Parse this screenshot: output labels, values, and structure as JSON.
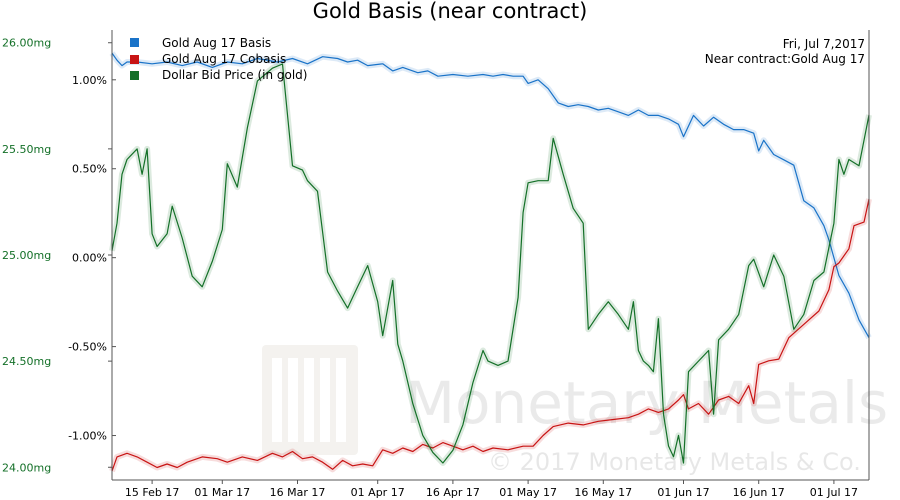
{
  "chart_data": {
    "type": "line",
    "title": "Gold Basis (near contract)",
    "info": [
      "Fri, Jul 7,2017",
      "Near contract:Gold Aug 17"
    ],
    "watermark": [
      "Monetary Metals",
      "© 2017 Monetary Metals & Co."
    ],
    "x_ticks": [
      "15 Feb 17",
      "01 Mar 17",
      "16 Mar 17",
      "01 Apr 17",
      "16 Apr 17",
      "01 May 17",
      "16 May 17",
      "01 Jun 17",
      "16 Jun 17",
      "01 Jul 17"
    ],
    "x_tick_days": [
      15,
      29,
      44,
      60,
      75,
      90,
      105,
      121,
      136,
      151
    ],
    "xlim": [
      7,
      158
    ],
    "left_axis": {
      "ticks": [
        "26.00mg",
        "25.50mg",
        "25.00mg",
        "24.50mg",
        "24.00mg"
      ],
      "values": [
        26.0,
        25.5,
        25.0,
        24.5,
        24.0
      ],
      "range": [
        23.94,
        26.06
      ]
    },
    "right_axis": {
      "ticks": [
        "1.00%",
        "0.50%",
        "0.00%",
        "-0.50%",
        "-1.00%"
      ],
      "values": [
        1.0,
        0.5,
        0.0,
        -0.5,
        -1.0
      ],
      "range": [
        -1.25,
        1.28
      ]
    },
    "colors": {
      "basis": "#1a73c8",
      "cobasis": "#c81414",
      "dollar": "#147028"
    },
    "series": [
      {
        "name": "Gold Aug 17 Basis",
        "axis": "right",
        "color": "#1a73c8",
        "points": [
          [
            7,
            1.15
          ],
          [
            8,
            1.11
          ],
          [
            9,
            1.08
          ],
          [
            10,
            1.1
          ],
          [
            12,
            1.1
          ],
          [
            15,
            1.09
          ],
          [
            18,
            1.1
          ],
          [
            21,
            1.08
          ],
          [
            24,
            1.1
          ],
          [
            27,
            1.07
          ],
          [
            30,
            1.1
          ],
          [
            33,
            1.09
          ],
          [
            36,
            1.12
          ],
          [
            40,
            1.1
          ],
          [
            43,
            1.12
          ],
          [
            46,
            1.09
          ],
          [
            49,
            1.13
          ],
          [
            52,
            1.12
          ],
          [
            54,
            1.1
          ],
          [
            56,
            1.11
          ],
          [
            58,
            1.08
          ],
          [
            61,
            1.09
          ],
          [
            63,
            1.05
          ],
          [
            65,
            1.07
          ],
          [
            68,
            1.04
          ],
          [
            70,
            1.05
          ],
          [
            72,
            1.02
          ],
          [
            75,
            1.03
          ],
          [
            78,
            1.02
          ],
          [
            81,
            1.03
          ],
          [
            83,
            1.02
          ],
          [
            85,
            1.03
          ],
          [
            87,
            1.02
          ],
          [
            89,
            1.02
          ],
          [
            90,
            0.98
          ],
          [
            92,
            1.0
          ],
          [
            94,
            0.95
          ],
          [
            96,
            0.87
          ],
          [
            98,
            0.85
          ],
          [
            100,
            0.86
          ],
          [
            102,
            0.85
          ],
          [
            104,
            0.83
          ],
          [
            106,
            0.84
          ],
          [
            108,
            0.82
          ],
          [
            110,
            0.8
          ],
          [
            112,
            0.83
          ],
          [
            114,
            0.8
          ],
          [
            116,
            0.8
          ],
          [
            118,
            0.78
          ],
          [
            120,
            0.75
          ],
          [
            121,
            0.68
          ],
          [
            123,
            0.8
          ],
          [
            125,
            0.74
          ],
          [
            127,
            0.79
          ],
          [
            129,
            0.75
          ],
          [
            131,
            0.72
          ],
          [
            133,
            0.72
          ],
          [
            135,
            0.7
          ],
          [
            136,
            0.6
          ],
          [
            137,
            0.66
          ],
          [
            139,
            0.58
          ],
          [
            141,
            0.55
          ],
          [
            143,
            0.52
          ],
          [
            145,
            0.32
          ],
          [
            147,
            0.28
          ],
          [
            149,
            0.18
          ],
          [
            150,
            0.1
          ],
          [
            151,
            0.0
          ],
          [
            152,
            -0.1
          ],
          [
            154,
            -0.2
          ],
          [
            156,
            -0.35
          ],
          [
            158,
            -0.45
          ]
        ]
      },
      {
        "name": "Gold Aug 17 Cobasis",
        "axis": "right",
        "color": "#c81414",
        "points": [
          [
            7,
            -1.2
          ],
          [
            8,
            -1.12
          ],
          [
            10,
            -1.1
          ],
          [
            12,
            -1.12
          ],
          [
            14,
            -1.15
          ],
          [
            16,
            -1.18
          ],
          [
            18,
            -1.16
          ],
          [
            20,
            -1.18
          ],
          [
            22,
            -1.15
          ],
          [
            25,
            -1.12
          ],
          [
            28,
            -1.13
          ],
          [
            30,
            -1.15
          ],
          [
            33,
            -1.12
          ],
          [
            36,
            -1.14
          ],
          [
            39,
            -1.1
          ],
          [
            41,
            -1.12
          ],
          [
            43,
            -1.09
          ],
          [
            45,
            -1.13
          ],
          [
            47,
            -1.12
          ],
          [
            49,
            -1.15
          ],
          [
            51,
            -1.19
          ],
          [
            53,
            -1.14
          ],
          [
            55,
            -1.17
          ],
          [
            57,
            -1.16
          ],
          [
            59,
            -1.17
          ],
          [
            61,
            -1.08
          ],
          [
            63,
            -1.1
          ],
          [
            65,
            -1.07
          ],
          [
            67,
            -1.09
          ],
          [
            69,
            -1.05
          ],
          [
            71,
            -1.07
          ],
          [
            73,
            -1.04
          ],
          [
            75,
            -1.06
          ],
          [
            77,
            -1.08
          ],
          [
            79,
            -1.06
          ],
          [
            81,
            -1.09
          ],
          [
            83,
            -1.07
          ],
          [
            86,
            -1.08
          ],
          [
            89,
            -1.06
          ],
          [
            91,
            -1.06
          ],
          [
            93,
            -1.0
          ],
          [
            95,
            -0.95
          ],
          [
            98,
            -0.93
          ],
          [
            101,
            -0.94
          ],
          [
            104,
            -0.92
          ],
          [
            107,
            -0.91
          ],
          [
            110,
            -0.9
          ],
          [
            112,
            -0.88
          ],
          [
            114,
            -0.85
          ],
          [
            116,
            -0.87
          ],
          [
            118,
            -0.85
          ],
          [
            120,
            -0.8
          ],
          [
            121,
            -0.77
          ],
          [
            122,
            -0.85
          ],
          [
            124,
            -0.82
          ],
          [
            126,
            -0.88
          ],
          [
            128,
            -0.8
          ],
          [
            130,
            -0.78
          ],
          [
            132,
            -0.82
          ],
          [
            134,
            -0.72
          ],
          [
            135,
            -0.82
          ],
          [
            136,
            -0.6
          ],
          [
            138,
            -0.58
          ],
          [
            140,
            -0.57
          ],
          [
            142,
            -0.45
          ],
          [
            144,
            -0.4
          ],
          [
            146,
            -0.35
          ],
          [
            148,
            -0.3
          ],
          [
            150,
            -0.18
          ],
          [
            151,
            -0.05
          ],
          [
            152,
            -0.03
          ],
          [
            154,
            0.05
          ],
          [
            155,
            0.18
          ],
          [
            157,
            0.2
          ],
          [
            158,
            0.33
          ]
        ]
      },
      {
        "name": "Dollar Bid Price (in gold)",
        "axis": "left",
        "color": "#147028",
        "points": [
          [
            7,
            25.02
          ],
          [
            8,
            25.15
          ],
          [
            9,
            25.38
          ],
          [
            10,
            25.45
          ],
          [
            12,
            25.5
          ],
          [
            13,
            25.38
          ],
          [
            14,
            25.5
          ],
          [
            15,
            25.1
          ],
          [
            16,
            25.04
          ],
          [
            18,
            25.1
          ],
          [
            19,
            25.23
          ],
          [
            21,
            25.08
          ],
          [
            23,
            24.9
          ],
          [
            25,
            24.85
          ],
          [
            27,
            24.97
          ],
          [
            29,
            25.12
          ],
          [
            30,
            25.43
          ],
          [
            32,
            25.32
          ],
          [
            34,
            25.6
          ],
          [
            36,
            25.82
          ],
          [
            38,
            25.86
          ],
          [
            39,
            25.88
          ],
          [
            41,
            25.9
          ],
          [
            43,
            25.42
          ],
          [
            45,
            25.4
          ],
          [
            46,
            25.35
          ],
          [
            48,
            25.3
          ],
          [
            50,
            24.92
          ],
          [
            52,
            24.83
          ],
          [
            54,
            24.75
          ],
          [
            56,
            24.85
          ],
          [
            58,
            24.95
          ],
          [
            60,
            24.78
          ],
          [
            61,
            24.62
          ],
          [
            63,
            24.88
          ],
          [
            64,
            24.58
          ],
          [
            65,
            24.5
          ],
          [
            67,
            24.3
          ],
          [
            69,
            24.15
          ],
          [
            71,
            24.07
          ],
          [
            73,
            24.02
          ],
          [
            75,
            24.08
          ],
          [
            77,
            24.2
          ],
          [
            79,
            24.4
          ],
          [
            81,
            24.55
          ],
          [
            82,
            24.5
          ],
          [
            84,
            24.48
          ],
          [
            86,
            24.5
          ],
          [
            88,
            24.8
          ],
          [
            89,
            25.2
          ],
          [
            90,
            25.34
          ],
          [
            92,
            25.35
          ],
          [
            94,
            25.35
          ],
          [
            95,
            25.55
          ],
          [
            97,
            25.38
          ],
          [
            99,
            25.22
          ],
          [
            101,
            25.15
          ],
          [
            102,
            24.65
          ],
          [
            104,
            24.72
          ],
          [
            106,
            24.78
          ],
          [
            108,
            24.72
          ],
          [
            110,
            24.65
          ],
          [
            111,
            24.78
          ],
          [
            112,
            24.55
          ],
          [
            113,
            24.5
          ],
          [
            114,
            24.48
          ],
          [
            115,
            24.45
          ],
          [
            116,
            24.7
          ],
          [
            117,
            24.25
          ],
          [
            118,
            24.1
          ],
          [
            119,
            24.05
          ],
          [
            120,
            24.15
          ],
          [
            121,
            24.02
          ],
          [
            122,
            24.45
          ],
          [
            124,
            24.5
          ],
          [
            126,
            24.55
          ],
          [
            127,
            24.25
          ],
          [
            128,
            24.6
          ],
          [
            130,
            24.65
          ],
          [
            132,
            24.72
          ],
          [
            134,
            24.95
          ],
          [
            135,
            24.98
          ],
          [
            137,
            24.85
          ],
          [
            139,
            25.0
          ],
          [
            141,
            24.9
          ],
          [
            143,
            24.65
          ],
          [
            145,
            24.72
          ],
          [
            147,
            24.88
          ],
          [
            149,
            24.92
          ],
          [
            151,
            25.15
          ],
          [
            152,
            25.45
          ],
          [
            153,
            25.38
          ],
          [
            154,
            25.45
          ],
          [
            156,
            25.42
          ],
          [
            158,
            25.66
          ]
        ]
      }
    ],
    "legend_position": "top-left",
    "grid": false
  }
}
